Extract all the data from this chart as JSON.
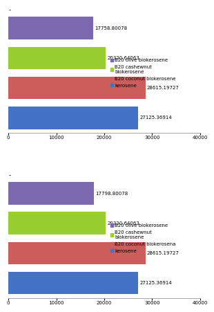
{
  "chart1": {
    "title": "-",
    "categories": [
      "B20 olive biokerosene",
      "B20 cashewnut\nbiokerosene",
      "B20 coconut biokerosene",
      "kerosene"
    ],
    "values": [
      17758.80078,
      20320.64063,
      28615.19727,
      27125.36914
    ],
    "colors": [
      "#7b68ae",
      "#9acd32",
      "#cd5c5c",
      "#4472c4"
    ],
    "bar_labels": [
      "17758.80078",
      "20320.64063",
      "28615.19727",
      "27125.36914"
    ],
    "xlim": [
      0,
      40000
    ],
    "xticks": [
      0,
      10000,
      20000,
      30000,
      40000
    ]
  },
  "chart2": {
    "title": "-",
    "categories": [
      "B20 olive biokerosene",
      "B20 cashewnut\nbiokerosene",
      "B20 coconut biokerosena",
      "kerosene"
    ],
    "values": [
      17798.80078,
      20320.64063,
      28615.19727,
      27125.36914
    ],
    "colors": [
      "#7b68ae",
      "#9acd32",
      "#cd5c5c",
      "#4472c4"
    ],
    "bar_labels": [
      "17798.80078",
      "20320.64063",
      "28615.19727",
      "27125.36914"
    ],
    "xlim": [
      0,
      40000
    ],
    "xticks": [
      0,
      10000,
      20000,
      30000,
      40000
    ]
  },
  "legend_labels_1": [
    "B20 olive biokerosene",
    "B20 cashewnut\nbiokerosene",
    "B20 coconut biokerosene",
    "kerosene"
  ],
  "legend_labels_2": [
    "B20 olive biokerosene",
    "B20 cashewnut\nbiokerosene",
    "B20 coconut biokerosena",
    "kerosene"
  ],
  "legend_colors": [
    "#7b68ae",
    "#9acd32",
    "#cd5c5c",
    "#4472c4"
  ],
  "background_color": "#ffffff",
  "bar_height": 0.75,
  "label_fontsize": 5.0,
  "legend_fontsize": 5.0,
  "title_fontsize": 6,
  "tick_fontsize": 5.0
}
